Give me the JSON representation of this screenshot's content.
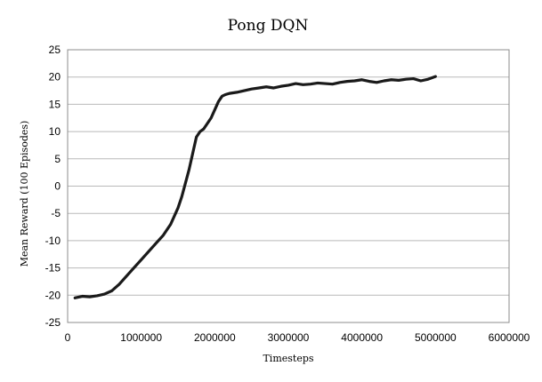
{
  "chart_data": {
    "type": "line",
    "title": "Pong  DQN",
    "xlabel": "Timesteps",
    "ylabel": "Mean Reward (100 Episodes)",
    "xlim": [
      0,
      6000000
    ],
    "ylim": [
      -25,
      25
    ],
    "x_ticks": [
      0,
      1000000,
      2000000,
      3000000,
      4000000,
      5000000,
      6000000
    ],
    "y_ticks": [
      -25,
      -20,
      -15,
      -10,
      -5,
      0,
      5,
      10,
      15,
      20,
      25
    ],
    "grid": "horizontal",
    "legend": "none",
    "colors": {
      "line": "#1a1a1a",
      "grid": "#b9b9b9",
      "frame": "#8c8c8c"
    },
    "series": [
      {
        "x": [
          100000,
          200000,
          300000,
          400000,
          500000,
          600000,
          700000,
          800000,
          900000,
          1000000,
          1100000,
          1200000,
          1300000,
          1400000,
          1500000,
          1550000,
          1600000,
          1650000,
          1700000,
          1750000,
          1800000,
          1850000,
          1900000,
          1950000,
          2000000,
          2050000,
          2100000,
          2150000,
          2200000,
          2300000,
          2400000,
          2500000,
          2600000,
          2700000,
          2800000,
          2900000,
          3000000,
          3100000,
          3200000,
          3300000,
          3400000,
          3500000,
          3600000,
          3700000,
          3800000,
          3900000,
          4000000,
          4100000,
          4200000,
          4300000,
          4400000,
          4500000,
          4600000,
          4700000,
          4800000,
          4900000,
          5000000
        ],
        "y": [
          -20.5,
          -20.2,
          -20.3,
          -20.1,
          -19.8,
          -19.2,
          -18.0,
          -16.5,
          -15.0,
          -13.5,
          -12.0,
          -10.5,
          -9.0,
          -7.0,
          -4.0,
          -2.0,
          0.5,
          3.0,
          6.0,
          9.0,
          10.0,
          10.5,
          11.5,
          12.5,
          14.0,
          15.5,
          16.5,
          16.8,
          17.0,
          17.2,
          17.5,
          17.8,
          18.0,
          18.2,
          18.0,
          18.3,
          18.5,
          18.8,
          18.6,
          18.7,
          18.9,
          18.8,
          18.7,
          19.0,
          19.2,
          19.3,
          19.5,
          19.2,
          19.0,
          19.3,
          19.5,
          19.4,
          19.6,
          19.7,
          19.3,
          19.6,
          20.1
        ]
      }
    ]
  }
}
